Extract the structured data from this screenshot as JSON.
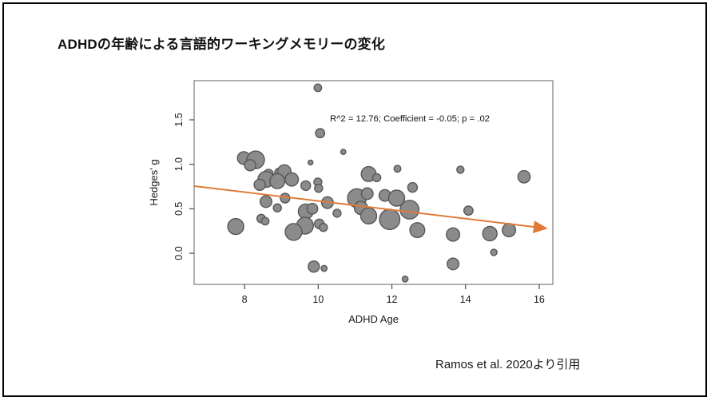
{
  "slide": {
    "title": "ADHDの年齢による言語的ワーキングメモリーの変化",
    "citation": "Ramos et al. 2020より引用"
  },
  "chart_data": {
    "type": "scatter",
    "variant": "bubble",
    "title": "",
    "xlabel": "ADHD Age",
    "ylabel": "Hedges' g",
    "annotation": "R^2 = 12.76; Coefficient = -0.05; p = .02",
    "x_ticks": [
      8,
      10,
      12,
      14,
      16
    ],
    "y_ticks": [
      0.0,
      0.5,
      1.0,
      1.5
    ],
    "xlim": [
      6.63,
      16.37
    ],
    "ylim": [
      -0.35,
      1.94
    ],
    "grid": false,
    "legend": null,
    "point_color": "#8b8b8b",
    "point_stroke": "#575757",
    "trend_color": "#e07b39",
    "trend_line": {
      "x1": 6.64,
      "y1": 0.755,
      "x2": 16.17,
      "y2": 0.28,
      "arrow": true,
      "slope_per_year": -0.05
    },
    "points_format": [
      "adhd_age",
      "hedges_g",
      "bubble_radius_px"
    ],
    "points": [
      [
        9.99,
        1.86,
        4.7
      ],
      [
        10.05,
        1.35,
        5.7
      ],
      [
        10.68,
        1.14,
        3.2
      ],
      [
        9.79,
        1.02,
        3.0
      ],
      [
        7.98,
        1.07,
        8.0
      ],
      [
        8.3,
        1.05,
        11.0
      ],
      [
        8.15,
        0.99,
        7.0
      ],
      [
        8.65,
        0.89,
        6.0
      ],
      [
        8.93,
        0.91,
        5.0
      ],
      [
        9.08,
        0.92,
        8.3
      ],
      [
        8.58,
        0.83,
        10.0
      ],
      [
        8.41,
        0.77,
        7.0
      ],
      [
        8.89,
        0.81,
        9.3
      ],
      [
        9.28,
        0.83,
        8.3
      ],
      [
        9.66,
        0.76,
        6.0
      ],
      [
        9.99,
        0.8,
        5.0
      ],
      [
        10.01,
        0.73,
        5.0
      ],
      [
        8.58,
        0.58,
        7.3
      ],
      [
        8.89,
        0.51,
        5.0
      ],
      [
        9.1,
        0.62,
        6.0
      ],
      [
        8.45,
        0.39,
        5.3
      ],
      [
        8.56,
        0.36,
        4.7
      ],
      [
        7.76,
        0.3,
        10.0
      ],
      [
        9.66,
        0.47,
        9.3
      ],
      [
        9.84,
        0.5,
        6.7
      ],
      [
        9.64,
        0.31,
        10.5
      ],
      [
        9.33,
        0.24,
        10.5
      ],
      [
        10.25,
        0.57,
        7.3
      ],
      [
        10.51,
        0.45,
        5.0
      ],
      [
        10.03,
        0.33,
        6.0
      ],
      [
        10.14,
        0.29,
        5.0
      ],
      [
        11.05,
        0.62,
        11.7
      ],
      [
        11.33,
        0.67,
        7.3
      ],
      [
        11.16,
        0.51,
        8.3
      ],
      [
        11.37,
        0.42,
        10.0
      ],
      [
        11.81,
        0.65,
        7.3
      ],
      [
        12.13,
        0.62,
        10.0
      ],
      [
        11.94,
        0.38,
        12.7
      ],
      [
        12.48,
        0.49,
        11.7
      ],
      [
        12.56,
        0.74,
        6.0
      ],
      [
        12.69,
        0.26,
        9.3
      ],
      [
        11.37,
        0.89,
        9.3
      ],
      [
        11.59,
        0.85,
        5.0
      ],
      [
        12.15,
        0.95,
        4.3
      ],
      [
        9.88,
        -0.15,
        7.0
      ],
      [
        10.16,
        -0.17,
        3.7
      ],
      [
        12.36,
        -0.29,
        3.7
      ],
      [
        13.66,
        -0.12,
        7.3
      ],
      [
        13.66,
        0.21,
        8.3
      ],
      [
        14.08,
        0.48,
        5.7
      ],
      [
        14.66,
        0.22,
        9.0
      ],
      [
        15.18,
        0.26,
        8.3
      ],
      [
        14.77,
        0.01,
        4.0
      ],
      [
        13.86,
        0.94,
        4.5
      ],
      [
        15.59,
        0.86,
        7.7
      ]
    ]
  }
}
